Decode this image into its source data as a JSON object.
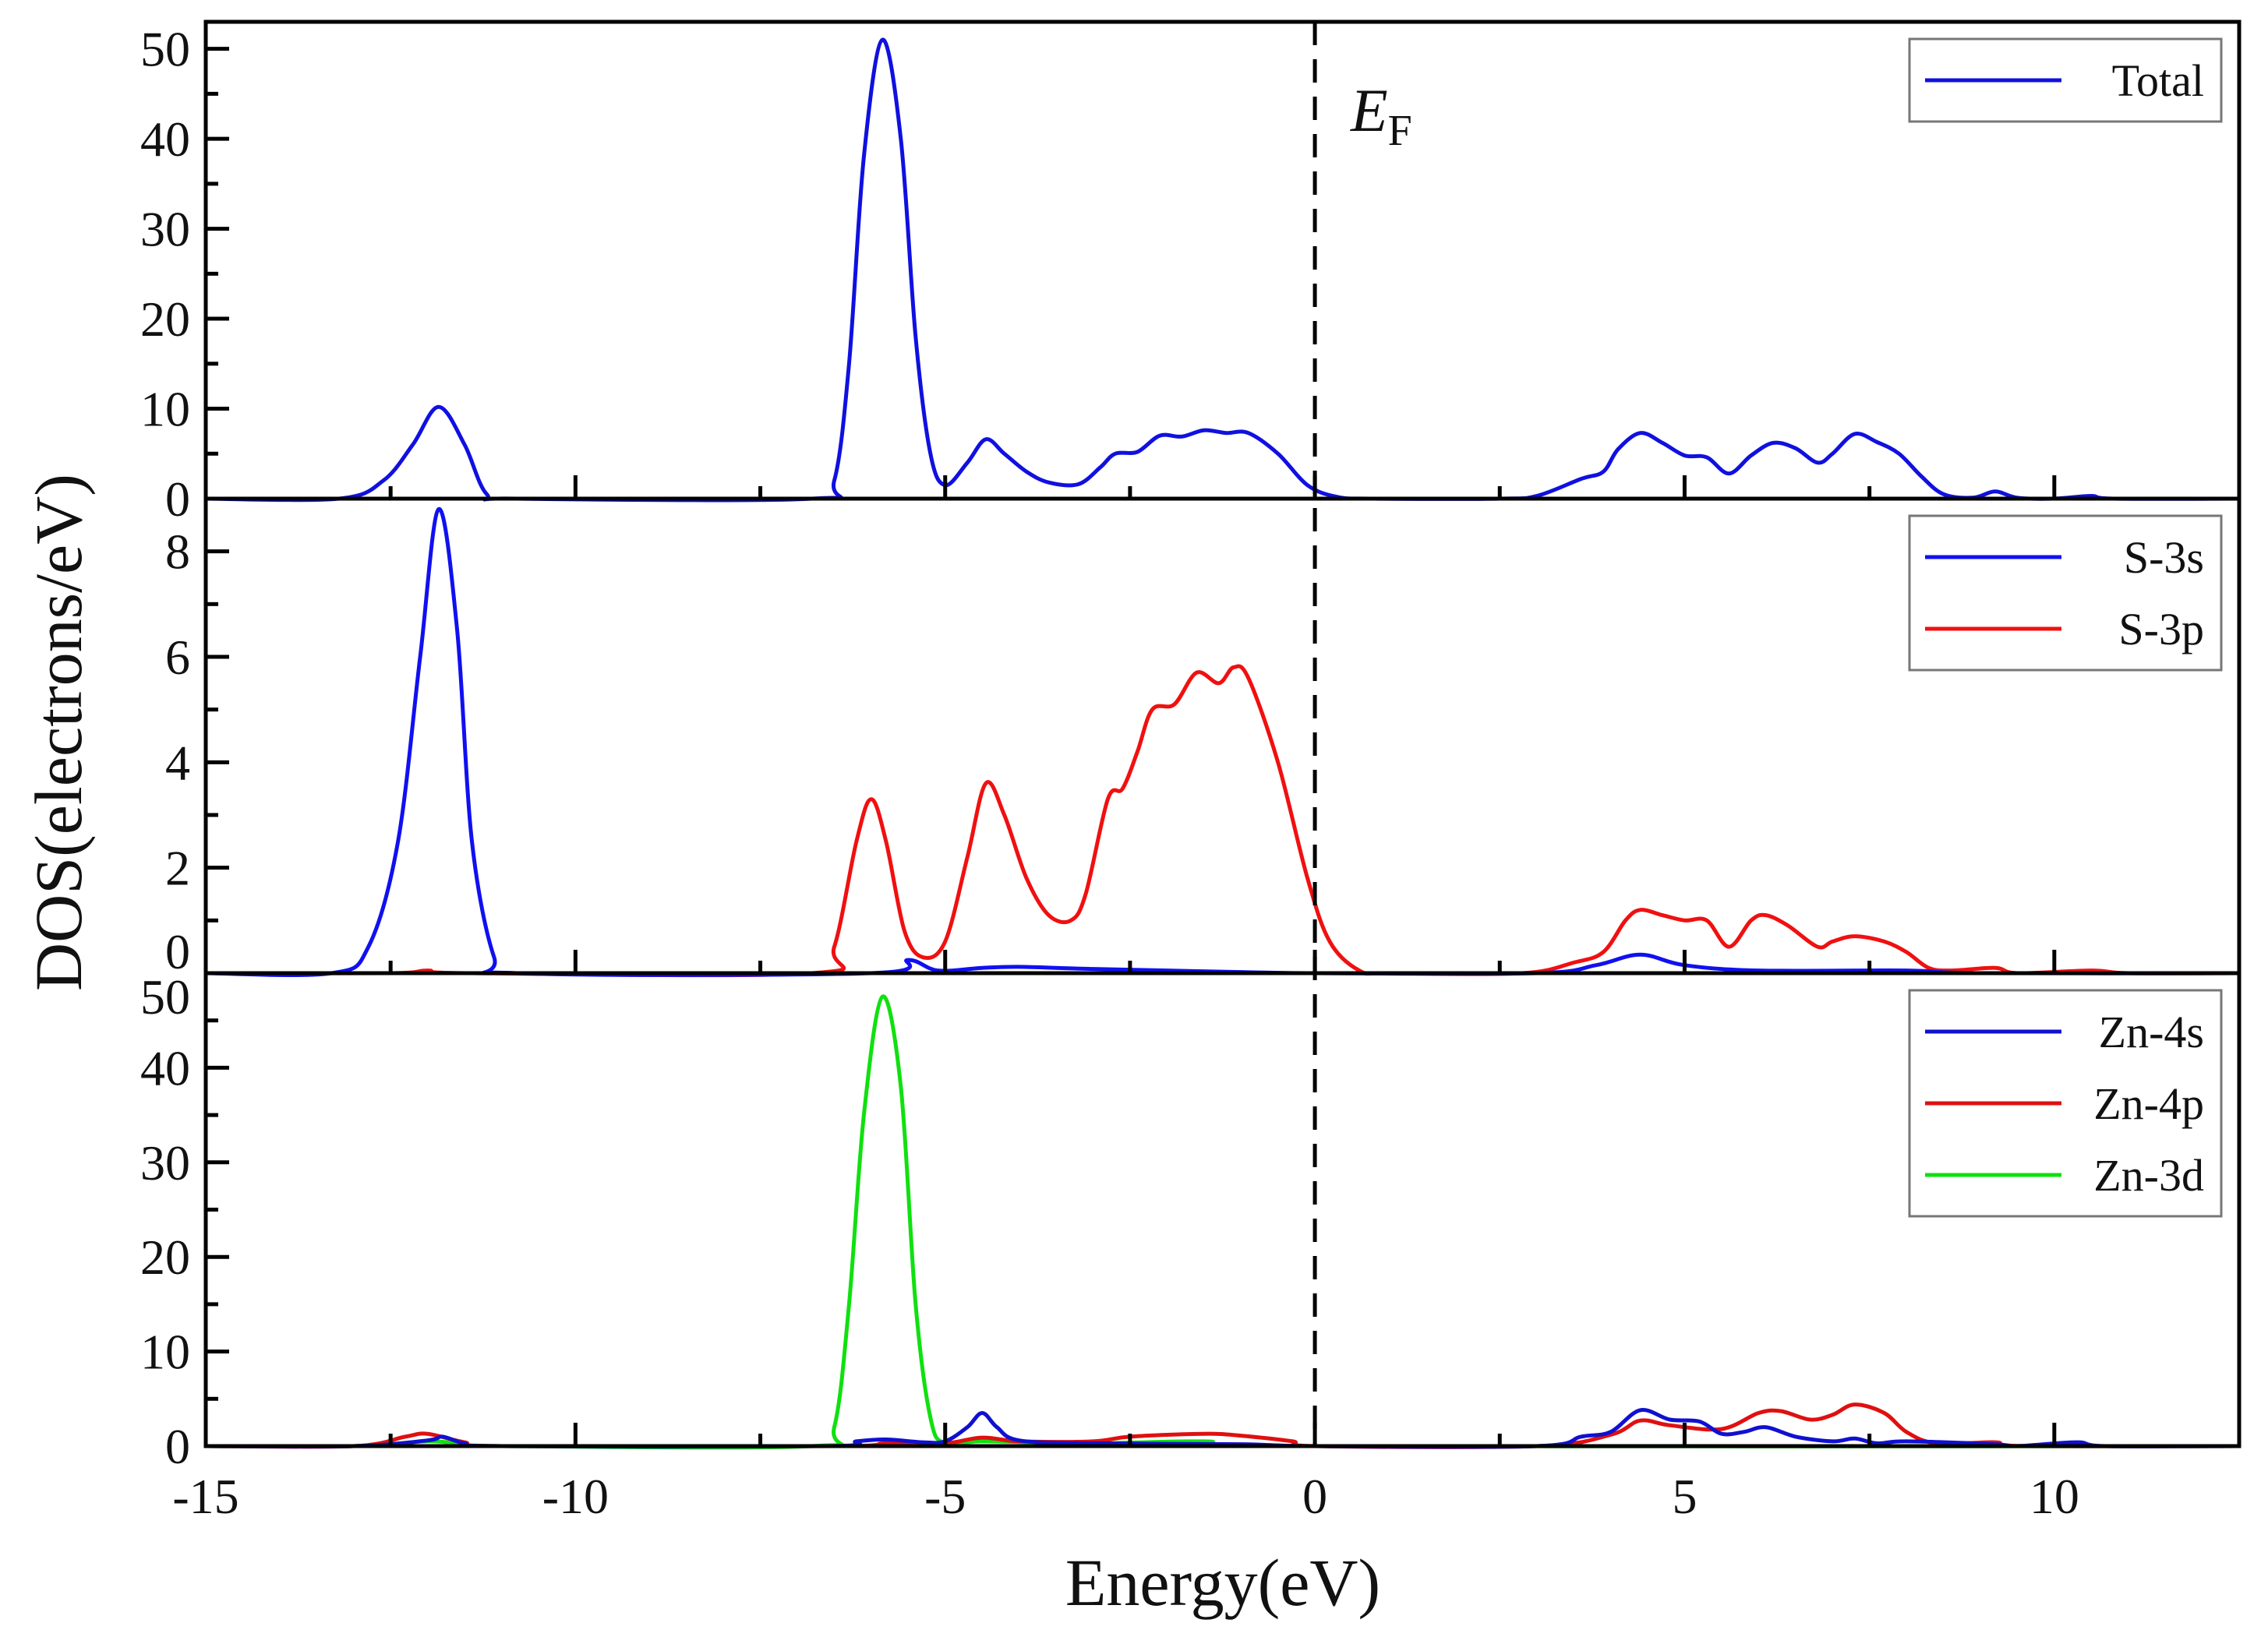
{
  "chart_data": {
    "type": "line",
    "title": "",
    "xlabel": "Energy(eV)",
    "ylabel": "DOS(electrons/eV)",
    "xlim": [
      -15,
      12.5
    ],
    "xticks": [
      -15,
      -10,
      -5,
      0,
      5,
      10
    ],
    "xtick_labels": [
      "-15",
      "-10",
      "-5",
      "0",
      "5",
      "10"
    ],
    "fermi_level": {
      "x": 0,
      "label_main": "E",
      "label_sub": "F",
      "style": "dashed"
    },
    "grid": false,
    "panels": [
      {
        "name": "total",
        "ylim": [
          0,
          53
        ],
        "yticks": [
          0,
          10,
          20,
          30,
          40,
          50
        ],
        "ytick_labels": [
          "0",
          "10",
          "20",
          "30",
          "40",
          "50"
        ],
        "legend_position": "top-right",
        "series": [
          {
            "name": "Total",
            "color": "#1010e0",
            "x": [
              -15,
              -13.2,
              -12.6,
              -12.2,
              -11.85,
              -11.5,
              -11.2,
              -10.8,
              -6.8,
              -6.5,
              -6.3,
              -6.1,
              -5.85,
              -5.6,
              -5.4,
              -5.2,
              -5.0,
              -4.7,
              -4.45,
              -4.2,
              -3.9,
              -3.6,
              -3.2,
              -2.9,
              -2.7,
              -2.4,
              -2.1,
              -1.8,
              -1.5,
              -1.2,
              -0.9,
              -0.5,
              -0.1,
              0.3,
              0.8,
              2.5,
              3.0,
              3.6,
              3.9,
              4.1,
              4.4,
              4.7,
              5.0,
              5.3,
              5.6,
              5.9,
              6.2,
              6.5,
              6.8,
              7.0,
              7.3,
              7.6,
              7.9,
              8.2,
              8.5,
              8.9,
              9.2,
              9.5,
              10.0,
              10.5,
              10.8,
              12.5
            ],
            "y": [
              0,
              0,
              2,
              6,
              10.2,
              6,
              0.5,
              0,
              0,
              2,
              15,
              38,
              51,
              40,
              18,
              5,
              1.5,
              4,
              6.6,
              5,
              3,
              1.8,
              1.6,
              3.5,
              5,
              5.2,
              7,
              6.9,
              7.6,
              7.3,
              7.3,
              5,
              1.5,
              0.2,
              0,
              0,
              0.3,
              2.2,
              3,
              5.5,
              7.3,
              6.2,
              4.8,
              4.6,
              2.8,
              4.8,
              6.2,
              5.6,
              4,
              5,
              7.2,
              6.3,
              5,
              2.5,
              0.5,
              0.1,
              0.8,
              0.1,
              0,
              0.3,
              0,
              0
            ]
          }
        ]
      },
      {
        "name": "S",
        "ylim": [
          0,
          9
        ],
        "yticks": [
          0,
          2,
          4,
          6,
          8
        ],
        "ytick_labels": [
          "0",
          "2",
          "4",
          "6",
          "8"
        ],
        "legend_position": "top-right",
        "series": [
          {
            "name": "S-3s",
            "color": "#1010f0",
            "x": [
              -15,
              -13.3,
              -12.8,
              -12.4,
              -12.1,
              -11.85,
              -11.6,
              -11.4,
              -11.1,
              -10.8,
              -6.0,
              -5.5,
              -5.1,
              -4.5,
              -4.0,
              -3.0,
              -1.0,
              0,
              3.0,
              3.8,
              4.4,
              5.0,
              6.0,
              8.0,
              9.0,
              12.5
            ],
            "y": [
              0,
              0,
              0.5,
              2.5,
              6,
              8.8,
              6.5,
              2.5,
              0.3,
              0,
              0,
              0.25,
              0.05,
              0.1,
              0.12,
              0.08,
              0.02,
              0,
              0,
              0.15,
              0.35,
              0.15,
              0.05,
              0.05,
              0,
              0
            ]
          },
          {
            "name": "S-3p",
            "color": "#f01010",
            "x": [
              -15,
              -12.5,
              -12.0,
              -11.4,
              -6.8,
              -6.5,
              -6.2,
              -6.0,
              -5.8,
              -5.55,
              -5.3,
              -5.0,
              -4.7,
              -4.45,
              -4.2,
              -3.9,
              -3.6,
              -3.3,
              -3.1,
              -2.8,
              -2.6,
              -2.4,
              -2.2,
              -1.9,
              -1.6,
              -1.3,
              -1.1,
              -0.9,
              -0.5,
              -0.1,
              0.2,
              0.6,
              1.0,
              2.8,
              3.5,
              3.9,
              4.2,
              4.4,
              4.7,
              5.0,
              5.3,
              5.6,
              5.9,
              6.1,
              6.4,
              6.8,
              7.0,
              7.3,
              7.7,
              8.0,
              8.3,
              8.6,
              9.2,
              9.5,
              10.5,
              11.0,
              12.5
            ],
            "y": [
              0,
              0,
              0.05,
              0,
              0,
              0.5,
              2.5,
              3.3,
              2.5,
              0.8,
              0.3,
              0.6,
              2.2,
              3.6,
              3.0,
              1.8,
              1.1,
              1.0,
              1.5,
              3.3,
              3.5,
              4.2,
              5.0,
              5.1,
              5.7,
              5.5,
              5.8,
              5.6,
              4.0,
              1.8,
              0.6,
              0.05,
              0,
              0,
              0.2,
              0.4,
              1.0,
              1.2,
              1.1,
              1.0,
              1.0,
              0.5,
              1.0,
              1.1,
              0.9,
              0.5,
              0.6,
              0.7,
              0.6,
              0.4,
              0.1,
              0.05,
              0.1,
              0,
              0.05,
              0,
              0
            ]
          }
        ]
      },
      {
        "name": "Zn",
        "ylim": [
          0,
          50
        ],
        "yticks": [
          0,
          10,
          20,
          30,
          40,
          50
        ],
        "ytick_labels": [
          "0",
          "10",
          "20",
          "30",
          "40",
          "50"
        ],
        "legend_position": "top-right",
        "series": [
          {
            "name": "Zn-4s",
            "color": "#1010d0",
            "x": [
              -15,
              -13,
              -12,
              -11.8,
              -11.5,
              -11,
              -6.6,
              -6.2,
              -5.8,
              -5.3,
              -5.0,
              -4.7,
              -4.5,
              -4.3,
              -4.0,
              -3.0,
              -1.0,
              0,
              3.0,
              3.6,
              4.0,
              4.4,
              4.8,
              5.2,
              5.5,
              5.8,
              6.1,
              6.5,
              7.0,
              7.3,
              7.6,
              8.0,
              9.2,
              9.5,
              10.3,
              10.7,
              12.5
            ],
            "y": [
              0,
              0,
              0.6,
              1.0,
              0.3,
              0,
              0,
              0.5,
              0.7,
              0.4,
              0.5,
              2.0,
              3.5,
              2,
              0.6,
              0.3,
              0.2,
              0,
              0,
              1,
              1.5,
              3.8,
              2.8,
              2.6,
              1.3,
              1.5,
              2.0,
              1.0,
              0.5,
              0.8,
              0.3,
              0.5,
              0.2,
              0,
              0.4,
              0,
              0
            ]
          },
          {
            "name": "Zn-4p",
            "color": "#e01010",
            "x": [
              -15,
              -13,
              -12.3,
              -12.0,
              -11.5,
              -11,
              -6.5,
              -5.8,
              -5.0,
              -4.5,
              -4.0,
              -3.0,
              -2.5,
              -1.5,
              -1.0,
              -0.3,
              0,
              3.0,
              4.0,
              4.4,
              4.8,
              5.5,
              6.0,
              6.3,
              6.7,
              7.0,
              7.3,
              7.7,
              8.0,
              8.4,
              9.2,
              9.6,
              12.5
            ],
            "y": [
              0,
              0,
              1,
              1.3,
              0.4,
              0,
              0,
              0.3,
              0.3,
              0.9,
              0.5,
              0.5,
              1.0,
              1.3,
              1.1,
              0.5,
              0,
              0,
              1.2,
              2.7,
              2.2,
              1.8,
              3.5,
              3.7,
              2.8,
              3.3,
              4.4,
              3.5,
              1.5,
              0.3,
              0.4,
              0,
              0
            ]
          },
          {
            "name": "Zn-3d",
            "color": "#10e010",
            "x": [
              -15,
              -13,
              -12,
              -11.5,
              -11,
              -6.8,
              -6.5,
              -6.3,
              -6.1,
              -5.85,
              -5.6,
              -5.4,
              -5.2,
              -5.0,
              -4.5,
              -3.0,
              -1.5,
              0,
              12.5
            ],
            "y": [
              0,
              0,
              0.5,
              0.2,
              0,
              0,
              2,
              15,
              35,
              47.5,
              38,
              15,
              3,
              0.3,
              0.5,
              0.3,
              0.5,
              0,
              0
            ]
          }
        ]
      }
    ]
  }
}
